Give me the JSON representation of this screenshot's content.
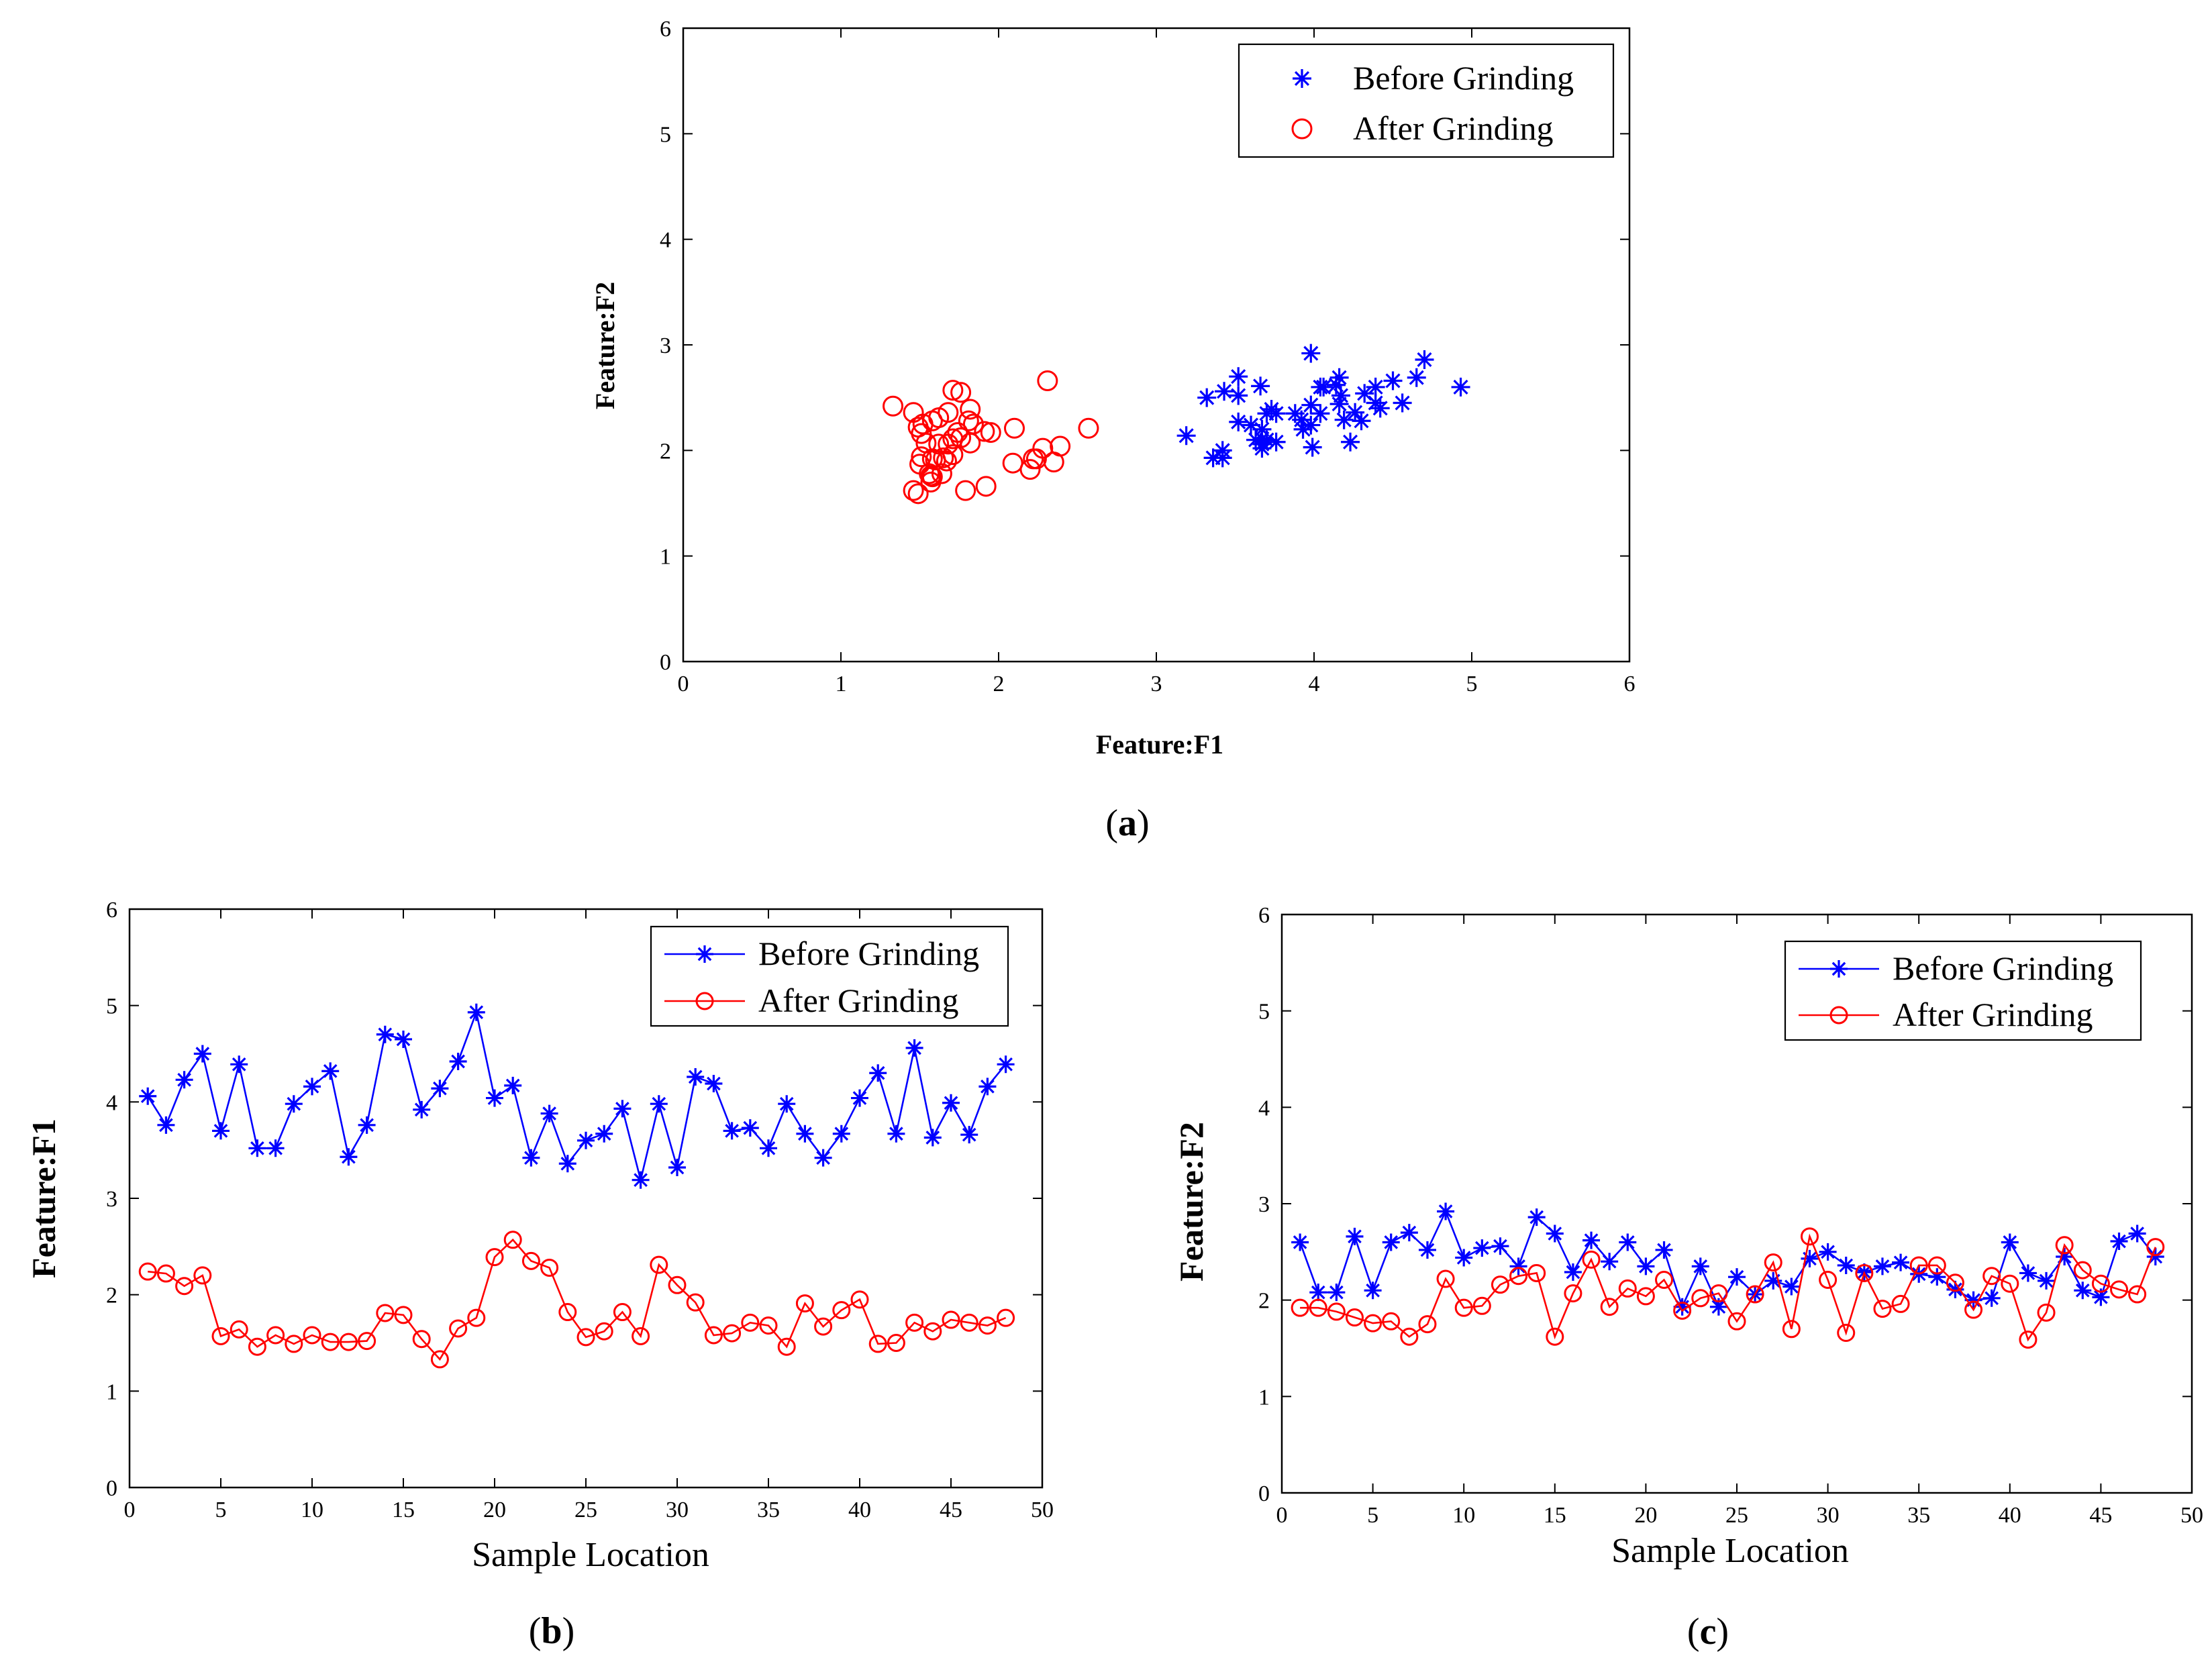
{
  "chart_data": [
    {
      "id": "a",
      "type": "scatter",
      "panel_label": "a",
      "xlabel": "Feature:F1",
      "ylabel": "Feature:F2",
      "xlim": [
        0,
        6
      ],
      "ylim": [
        0,
        6
      ],
      "xticks": [
        0,
        1,
        2,
        3,
        4,
        5,
        6
      ],
      "yticks": [
        0,
        1,
        2,
        3,
        4,
        5,
        6
      ],
      "grid": false,
      "legend_position": "top-right",
      "series": [
        {
          "name": "Before Grinding",
          "color": "#0000ff",
          "marker": "star",
          "x": [
            4.06,
            3.76,
            4.23,
            4.5,
            3.7,
            4.39,
            3.52,
            3.52,
            3.98,
            4.16,
            4.32,
            3.43,
            3.76,
            4.7,
            4.65,
            3.92,
            4.14,
            4.42,
            4.93,
            4.04,
            4.17,
            3.42,
            3.88,
            3.36,
            3.6,
            3.67,
            3.93,
            3.19,
            3.98,
            3.32,
            4.26,
            4.19,
            3.7,
            3.73,
            3.52,
            3.98,
            3.67,
            3.42,
            3.67,
            4.04,
            4.3,
            3.67,
            4.56,
            3.63,
            3.99,
            3.66,
            4.16,
            4.39
          ],
          "y": [
            2.6,
            2.08,
            2.08,
            2.66,
            2.1,
            2.6,
            2.7,
            2.52,
            2.92,
            2.44,
            2.54,
            2.56,
            2.35,
            2.86,
            2.69,
            2.29,
            2.62,
            2.4,
            2.6,
            2.35,
            2.52,
            1.93,
            2.35,
            1.93,
            2.24,
            2.06,
            2.2,
            2.14,
            2.43,
            2.5,
            2.36,
            2.29,
            2.35,
            2.39,
            2.27,
            2.24,
            2.11,
            2.0,
            2.02,
            2.6,
            2.28,
            2.2,
            2.45,
            2.1,
            2.03,
            2.61,
            2.69,
            2.45
          ]
        },
        {
          "name": "After Grinding",
          "color": "#ff0000",
          "marker": "circle",
          "x": [
            2.24,
            2.22,
            2.09,
            2.2,
            1.57,
            1.64,
            1.46,
            1.58,
            1.49,
            1.58,
            1.51,
            1.51,
            1.52,
            1.81,
            1.79,
            1.54,
            1.33,
            1.65,
            1.76,
            2.39,
            2.57,
            2.35,
            2.28,
            1.82,
            1.56,
            1.62,
            1.82,
            1.57,
            2.31,
            2.1,
            1.92,
            1.58,
            1.6,
            1.71,
            1.68,
            1.46,
            1.91,
            1.67,
            1.84,
            1.95,
            1.49,
            1.5,
            1.71,
            1.62,
            1.74,
            1.71,
            1.68,
            1.76
          ],
          "y": [
            1.92,
            1.92,
            1.88,
            1.82,
            1.76,
            1.78,
            1.62,
            1.75,
            2.22,
            1.92,
            1.94,
            2.16,
            2.25,
            2.28,
            1.62,
            2.07,
            2.42,
            1.93,
            2.12,
            2.04,
            2.21,
            1.89,
            2.02,
            2.07,
            1.78,
            2.06,
            2.39,
            1.7,
            2.66,
            2.21,
            1.66,
            2.28,
            1.91,
            1.96,
            2.36,
            2.36,
            2.18,
            1.9,
            2.25,
            2.17,
            1.59,
            1.87,
            2.57,
            2.31,
            2.17,
            2.11,
            2.06,
            2.55
          ]
        }
      ]
    },
    {
      "id": "b",
      "type": "line",
      "panel_label": "b",
      "xlabel": "Sample Location",
      "ylabel": "Feature:F1",
      "xlim": [
        0,
        50
      ],
      "ylim": [
        0,
        6
      ],
      "xticks": [
        0,
        5,
        10,
        15,
        20,
        25,
        30,
        35,
        40,
        45,
        50
      ],
      "yticks": [
        0,
        1,
        2,
        3,
        4,
        5,
        6
      ],
      "grid": false,
      "legend_position": "top-right",
      "x": [
        1,
        2,
        3,
        4,
        5,
        6,
        7,
        8,
        9,
        10,
        11,
        12,
        13,
        14,
        15,
        16,
        17,
        18,
        19,
        20,
        21,
        22,
        23,
        24,
        25,
        26,
        27,
        28,
        29,
        30,
        31,
        32,
        33,
        34,
        35,
        36,
        37,
        38,
        39,
        40,
        41,
        42,
        43,
        44,
        45,
        46,
        47,
        48
      ],
      "series": [
        {
          "name": "Before Grinding",
          "color": "#0000ff",
          "marker": "star",
          "values": [
            4.06,
            3.76,
            4.23,
            4.5,
            3.7,
            4.39,
            3.52,
            3.52,
            3.98,
            4.16,
            4.32,
            3.43,
            3.76,
            4.7,
            4.65,
            3.92,
            4.14,
            4.42,
            4.93,
            4.04,
            4.17,
            3.42,
            3.88,
            3.36,
            3.6,
            3.67,
            3.93,
            3.19,
            3.98,
            3.32,
            4.26,
            4.19,
            3.7,
            3.73,
            3.52,
            3.98,
            3.67,
            3.42,
            3.67,
            4.04,
            4.3,
            3.67,
            4.56,
            3.63,
            3.99,
            3.66,
            4.16,
            4.39
          ]
        },
        {
          "name": "After Grinding",
          "color": "#ff0000",
          "marker": "circle",
          "values": [
            2.24,
            2.22,
            2.09,
            2.2,
            1.57,
            1.64,
            1.46,
            1.58,
            1.49,
            1.58,
            1.51,
            1.51,
            1.52,
            1.81,
            1.79,
            1.54,
            1.33,
            1.65,
            1.76,
            2.39,
            2.57,
            2.35,
            2.28,
            1.82,
            1.56,
            1.62,
            1.82,
            1.57,
            2.31,
            2.1,
            1.92,
            1.58,
            1.6,
            1.71,
            1.68,
            1.46,
            1.91,
            1.67,
            1.84,
            1.95,
            1.49,
            1.5,
            1.71,
            1.62,
            1.74,
            1.71,
            1.68,
            1.76
          ]
        }
      ]
    },
    {
      "id": "c",
      "type": "line",
      "panel_label": "c",
      "xlabel": "Sample Location",
      "ylabel": "Feature:F2",
      "xlim": [
        0,
        50
      ],
      "ylim": [
        0,
        6
      ],
      "xticks": [
        0,
        5,
        10,
        15,
        20,
        25,
        30,
        35,
        40,
        45,
        50
      ],
      "yticks": [
        0,
        1,
        2,
        3,
        4,
        5,
        6
      ],
      "grid": false,
      "legend_position": "top-right",
      "x": [
        1,
        2,
        3,
        4,
        5,
        6,
        7,
        8,
        9,
        10,
        11,
        12,
        13,
        14,
        15,
        16,
        17,
        18,
        19,
        20,
        21,
        22,
        23,
        24,
        25,
        26,
        27,
        28,
        29,
        30,
        31,
        32,
        33,
        34,
        35,
        36,
        37,
        38,
        39,
        40,
        41,
        42,
        43,
        44,
        45,
        46,
        47,
        48
      ],
      "series": [
        {
          "name": "Before Grinding",
          "color": "#0000ff",
          "marker": "star",
          "values": [
            2.6,
            2.08,
            2.08,
            2.66,
            2.1,
            2.6,
            2.7,
            2.52,
            2.92,
            2.44,
            2.54,
            2.56,
            2.35,
            2.86,
            2.69,
            2.29,
            2.62,
            2.4,
            2.6,
            2.35,
            2.52,
            1.93,
            2.35,
            1.93,
            2.24,
            2.06,
            2.2,
            2.14,
            2.43,
            2.5,
            2.36,
            2.29,
            2.35,
            2.39,
            2.27,
            2.24,
            2.11,
            2.0,
            2.02,
            2.6,
            2.28,
            2.2,
            2.45,
            2.1,
            2.03,
            2.61,
            2.69,
            2.45
          ]
        },
        {
          "name": "After Grinding",
          "color": "#ff0000",
          "marker": "circle",
          "values": [
            1.92,
            1.92,
            1.88,
            1.82,
            1.76,
            1.78,
            1.62,
            1.75,
            2.22,
            1.92,
            1.94,
            2.16,
            2.25,
            2.28,
            1.62,
            2.07,
            2.42,
            1.93,
            2.12,
            2.04,
            2.21,
            1.89,
            2.02,
            2.07,
            1.78,
            2.06,
            2.39,
            1.7,
            2.66,
            2.21,
            1.66,
            2.28,
            1.91,
            1.96,
            2.36,
            2.36,
            2.18,
            1.9,
            2.25,
            2.17,
            1.59,
            1.87,
            2.57,
            2.31,
            2.17,
            2.11,
            2.06,
            2.55
          ]
        }
      ]
    }
  ]
}
